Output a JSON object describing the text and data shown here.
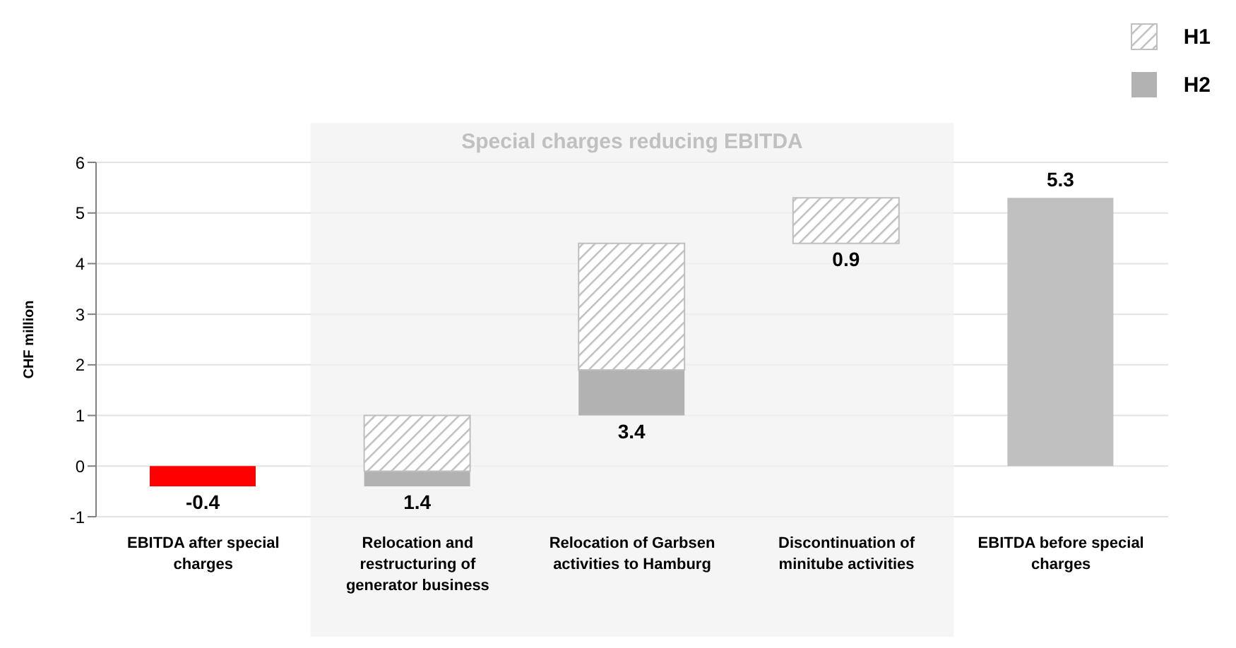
{
  "chart_data": {
    "type": "bar",
    "categories": [
      "EBITDA after special charges",
      "Relocation and restructuring of generator business",
      "Relocation of Garbsen activities to Hamburg",
      "Discontinuation of minitube activities",
      "EBITDA before special charges"
    ],
    "series": [
      {
        "colors": [
          "#ff0000",
          null,
          null,
          null,
          "#c0c0c0"
        ],
        "values": [
          -0.4,
          null,
          null,
          null,
          5.3
        ]
      },
      {
        "name": "H2",
        "color": "#b2b2b2",
        "base": [
          null,
          -0.4,
          1.0,
          null,
          null
        ],
        "values": [
          null,
          0.3,
          0.9,
          null,
          null
        ]
      },
      {
        "name": "H1",
        "color": "#bfbfbf",
        "base": [
          null,
          -0.1,
          1.9,
          4.4,
          null
        ],
        "values": [
          null,
          1.1,
          2.5,
          0.9,
          null
        ]
      }
    ],
    "totals": [
      "-0.4",
      "1.4",
      "3.4",
      "0.9",
      "5.3"
    ],
    "ylabel": "CHF million",
    "ylim": [
      -1,
      6
    ],
    "yticks": [
      -1,
      0,
      1,
      2,
      3,
      4,
      5,
      6
    ],
    "grid": "y",
    "legend": "top right",
    "bands": [
      {
        "axis": "x",
        "from": "Relocation and restructuring of generator business",
        "to": "Discontinuation of minitube activities",
        "label": "Special charges reducing EBITDA",
        "color": "#f2f2f2"
      }
    ]
  }
}
